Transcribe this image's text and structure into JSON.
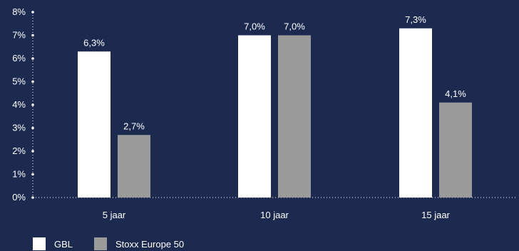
{
  "chart_data": {
    "type": "bar",
    "categories": [
      "5 jaar",
      "10 jaar",
      "15 jaar"
    ],
    "series": [
      {
        "name": "GBL",
        "color": "#ffffff",
        "values": [
          6.3,
          7.0,
          7.3
        ],
        "labels": [
          "6,3%",
          "7,0%",
          "7,3%"
        ]
      },
      {
        "name": "Stoxx Europe 50",
        "color": "#9b9b9b",
        "values": [
          2.7,
          7.0,
          4.1
        ],
        "labels": [
          "2,7%",
          "7,0%",
          "4,1%"
        ]
      }
    ],
    "ylim": [
      0,
      8
    ],
    "yticks": [
      "0%",
      "1%",
      "2%",
      "3%",
      "4%",
      "5%",
      "6%",
      "7%",
      "8%"
    ],
    "legend_position": "bottom-left",
    "background": "#1b2a4e"
  }
}
